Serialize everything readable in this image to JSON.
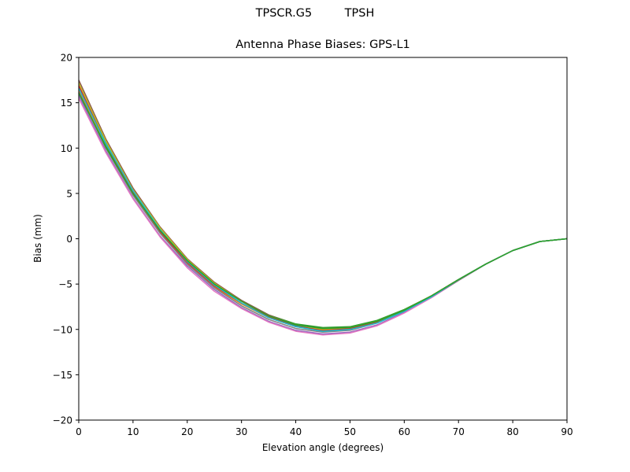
{
  "figure": {
    "suptitle": "TPSCR.G5         TPSH",
    "title": "Antenna Phase Biases: GPS-L1",
    "xlabel": "Elevation angle (degrees)",
    "ylabel": "Bias (mm)"
  },
  "chart_data": {
    "type": "line",
    "title": "Antenna Phase Biases: GPS-L1",
    "suptitle": "TPSCR.G5         TPSH",
    "xlabel": "Elevation angle (degrees)",
    "ylabel": "Bias (mm)",
    "xlim": [
      0,
      90
    ],
    "ylim": [
      -20,
      20
    ],
    "xticks": [
      0,
      10,
      20,
      30,
      40,
      50,
      60,
      70,
      80,
      90
    ],
    "yticks": [
      -20,
      -15,
      -10,
      -5,
      0,
      5,
      10,
      15,
      20
    ],
    "ytick_labels": [
      "−20",
      "−15",
      "−10",
      "−5",
      "0",
      "5",
      "10",
      "15",
      "20"
    ],
    "grid": false,
    "legend": null,
    "x": [
      0,
      5,
      10,
      15,
      20,
      25,
      30,
      35,
      40,
      45,
      50,
      55,
      60,
      65,
      70,
      75,
      80,
      85,
      90
    ],
    "series": [
      {
        "name": "series-1",
        "color": "#1f77b4",
        "values": [
          16.8,
          10.6,
          5.3,
          1.1,
          -2.4,
          -5.1,
          -7.1,
          -8.6,
          -9.6,
          -10.0,
          -9.9,
          -9.2,
          -7.9,
          -6.3,
          -4.5,
          -2.8,
          -1.3,
          -0.3,
          0.0
        ]
      },
      {
        "name": "series-2",
        "color": "#ff7f0e",
        "values": [
          16.4,
          10.2,
          4.9,
          0.7,
          -2.7,
          -5.3,
          -7.2,
          -8.7,
          -9.7,
          -10.1,
          -10.0,
          -9.2,
          -7.9,
          -6.3,
          -4.5,
          -2.8,
          -1.3,
          -0.3,
          0.0
        ]
      },
      {
        "name": "series-3",
        "color": "#2ca02c",
        "values": [
          16.0,
          10.2,
          5.1,
          1.0,
          -2.3,
          -4.9,
          -6.8,
          -8.4,
          -9.4,
          -9.8,
          -9.7,
          -9.0,
          -7.8,
          -6.3,
          -4.5,
          -2.8,
          -1.3,
          -0.3,
          0.0
        ]
      },
      {
        "name": "series-4",
        "color": "#d62728",
        "values": [
          16.9,
          10.5,
          5.1,
          0.8,
          -2.6,
          -5.2,
          -7.1,
          -8.6,
          -9.7,
          -10.1,
          -9.9,
          -9.2,
          -7.9,
          -6.3,
          -4.5,
          -2.8,
          -1.3,
          -0.3,
          0.0
        ]
      },
      {
        "name": "series-5",
        "color": "#9467bd",
        "values": [
          15.8,
          9.7,
          4.5,
          0.3,
          -3.0,
          -5.6,
          -7.6,
          -9.1,
          -10.1,
          -10.5,
          -10.3,
          -9.5,
          -8.1,
          -6.5,
          -4.6,
          -2.8,
          -1.3,
          -0.3,
          0.0
        ]
      },
      {
        "name": "series-6",
        "color": "#8c564b",
        "values": [
          17.5,
          11.0,
          5.6,
          1.3,
          -2.2,
          -4.8,
          -6.8,
          -8.4,
          -9.5,
          -9.9,
          -9.8,
          -9.1,
          -7.9,
          -6.3,
          -4.5,
          -2.8,
          -1.3,
          -0.3,
          0.0
        ]
      },
      {
        "name": "series-7",
        "color": "#e377c2",
        "values": [
          15.5,
          9.5,
          4.4,
          0.2,
          -3.2,
          -5.8,
          -7.7,
          -9.2,
          -10.2,
          -10.6,
          -10.4,
          -9.6,
          -8.2,
          -6.5,
          -4.6,
          -2.8,
          -1.3,
          -0.3,
          0.0
        ]
      },
      {
        "name": "series-8",
        "color": "#7f7f7f",
        "values": [
          16.2,
          10.0,
          4.8,
          0.6,
          -2.8,
          -5.4,
          -7.4,
          -8.9,
          -9.9,
          -10.3,
          -10.1,
          -9.3,
          -8.0,
          -6.4,
          -4.6,
          -2.8,
          -1.3,
          -0.3,
          0.0
        ]
      },
      {
        "name": "series-9",
        "color": "#bcbd22",
        "values": [
          17.2,
          10.8,
          5.4,
          1.2,
          -2.3,
          -4.9,
          -6.9,
          -8.5,
          -9.5,
          -10.0,
          -9.8,
          -9.1,
          -7.9,
          -6.3,
          -4.5,
          -2.8,
          -1.3,
          -0.3,
          0.0
        ]
      },
      {
        "name": "series-10",
        "color": "#17becf",
        "values": [
          16.6,
          10.5,
          5.3,
          1.0,
          -2.5,
          -5.1,
          -7.1,
          -8.7,
          -9.7,
          -10.2,
          -10.0,
          -9.3,
          -8.0,
          -6.4,
          -4.5,
          -2.8,
          -1.3,
          -0.3,
          0.0
        ]
      },
      {
        "name": "series-11",
        "color": "#2ca02c",
        "values": [
          16.1,
          10.1,
          5.0,
          0.9,
          -2.4,
          -5.0,
          -6.9,
          -8.5,
          -9.5,
          -9.9,
          -9.8,
          -9.1,
          -7.9,
          -6.3,
          -4.5,
          -2.8,
          -1.3,
          -0.3,
          0.0
        ]
      }
    ]
  }
}
